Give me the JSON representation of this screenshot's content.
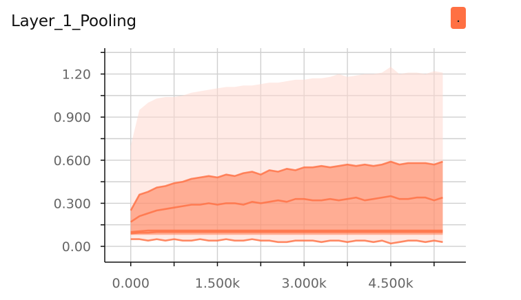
{
  "chart_data": {
    "type": "area",
    "title": "Layer_1_Pooling",
    "xlabel": "",
    "ylabel": "",
    "xlim": [
      -450,
      5800
    ],
    "ylim": [
      -0.11,
      1.38
    ],
    "x_ticks": [
      0,
      1500,
      3000,
      4500
    ],
    "x_tick_labels": [
      "0.000",
      "1.500k",
      "3.000k",
      "4.500k"
    ],
    "y_ticks": [
      0,
      0.3,
      0.6,
      0.9,
      1.2
    ],
    "y_tick_labels": [
      "0.00",
      "0.300",
      "0.600",
      "0.900",
      "1.20"
    ],
    "grid": true,
    "legend": "none",
    "color": "#ff7043",
    "x": [
      0,
      150,
      300,
      450,
      600,
      750,
      900,
      1050,
      1200,
      1350,
      1500,
      1650,
      1800,
      1950,
      2100,
      2250,
      2400,
      2550,
      2700,
      2850,
      3000,
      3150,
      3300,
      3450,
      3600,
      3750,
      3900,
      4050,
      4200,
      4350,
      4500,
      4650,
      4800,
      4950,
      5100,
      5250,
      5400
    ],
    "bands": [
      {
        "lower": [
          0.05,
          0.05,
          0.04,
          0.05,
          0.04,
          0.05,
          0.04,
          0.04,
          0.05,
          0.04,
          0.04,
          0.05,
          0.04,
          0.04,
          0.05,
          0.04,
          0.04,
          0.03,
          0.03,
          0.04,
          0.04,
          0.04,
          0.03,
          0.04,
          0.04,
          0.03,
          0.04,
          0.04,
          0.03,
          0.04,
          0.02,
          0.03,
          0.04,
          0.04,
          0.03,
          0.04,
          0.03
        ],
        "upper": [
          0.7,
          0.95,
          1.0,
          1.03,
          1.04,
          1.04,
          1.05,
          1.07,
          1.08,
          1.09,
          1.1,
          1.11,
          1.11,
          1.12,
          1.12,
          1.13,
          1.14,
          1.14,
          1.15,
          1.16,
          1.16,
          1.17,
          1.17,
          1.18,
          1.2,
          1.18,
          1.19,
          1.2,
          1.2,
          1.21,
          1.25,
          1.2,
          1.21,
          1.21,
          1.2,
          1.22,
          1.21
        ]
      },
      {
        "lower": [
          0.08,
          0.08,
          0.08,
          0.08,
          0.08,
          0.08,
          0.08,
          0.08,
          0.08,
          0.08,
          0.08,
          0.08,
          0.08,
          0.08,
          0.08,
          0.08,
          0.08,
          0.08,
          0.08,
          0.08,
          0.08,
          0.08,
          0.08,
          0.08,
          0.08,
          0.08,
          0.08,
          0.08,
          0.08,
          0.08,
          0.08,
          0.08,
          0.08,
          0.08,
          0.08,
          0.08,
          0.08
        ],
        "upper": [
          0.25,
          0.36,
          0.38,
          0.41,
          0.42,
          0.44,
          0.45,
          0.47,
          0.48,
          0.49,
          0.48,
          0.5,
          0.49,
          0.51,
          0.52,
          0.5,
          0.53,
          0.52,
          0.54,
          0.53,
          0.55,
          0.55,
          0.56,
          0.55,
          0.56,
          0.57,
          0.56,
          0.57,
          0.56,
          0.57,
          0.59,
          0.57,
          0.58,
          0.58,
          0.58,
          0.57,
          0.59
        ]
      }
    ],
    "series": [
      {
        "values": [
          0.25,
          0.36,
          0.38,
          0.41,
          0.42,
          0.44,
          0.45,
          0.47,
          0.48,
          0.49,
          0.48,
          0.5,
          0.49,
          0.51,
          0.52,
          0.5,
          0.53,
          0.52,
          0.54,
          0.53,
          0.55,
          0.55,
          0.56,
          0.55,
          0.56,
          0.57,
          0.56,
          0.57,
          0.56,
          0.57,
          0.59,
          0.57,
          0.58,
          0.58,
          0.58,
          0.57,
          0.59
        ]
      },
      {
        "values": [
          0.17,
          0.21,
          0.23,
          0.25,
          0.26,
          0.27,
          0.28,
          0.29,
          0.29,
          0.3,
          0.29,
          0.3,
          0.3,
          0.29,
          0.31,
          0.3,
          0.31,
          0.32,
          0.31,
          0.33,
          0.33,
          0.32,
          0.32,
          0.33,
          0.32,
          0.33,
          0.34,
          0.32,
          0.33,
          0.34,
          0.35,
          0.33,
          0.33,
          0.34,
          0.34,
          0.32,
          0.34
        ]
      },
      {
        "values": [
          0.1,
          0.105,
          0.11,
          0.11,
          0.11,
          0.11,
          0.11,
          0.11,
          0.11,
          0.11,
          0.11,
          0.11,
          0.11,
          0.11,
          0.11,
          0.11,
          0.11,
          0.11,
          0.11,
          0.11,
          0.11,
          0.11,
          0.11,
          0.11,
          0.11,
          0.11,
          0.11,
          0.11,
          0.11,
          0.11,
          0.11,
          0.11,
          0.11,
          0.11,
          0.11,
          0.11,
          0.11
        ]
      },
      {
        "values": [
          0.09,
          0.095,
          0.095,
          0.1,
          0.1,
          0.1,
          0.1,
          0.1,
          0.1,
          0.1,
          0.1,
          0.1,
          0.1,
          0.1,
          0.1,
          0.1,
          0.1,
          0.1,
          0.1,
          0.1,
          0.1,
          0.1,
          0.1,
          0.1,
          0.1,
          0.1,
          0.1,
          0.1,
          0.1,
          0.1,
          0.1,
          0.1,
          0.1,
          0.1,
          0.1,
          0.1,
          0.1
        ]
      },
      {
        "values": [
          0.05,
          0.05,
          0.04,
          0.05,
          0.04,
          0.05,
          0.04,
          0.04,
          0.05,
          0.04,
          0.04,
          0.05,
          0.04,
          0.04,
          0.05,
          0.04,
          0.04,
          0.03,
          0.03,
          0.04,
          0.04,
          0.04,
          0.03,
          0.04,
          0.04,
          0.03,
          0.04,
          0.04,
          0.03,
          0.04,
          0.02,
          0.03,
          0.04,
          0.04,
          0.03,
          0.04,
          0.03
        ]
      }
    ]
  },
  "badge": {
    "label": "."
  }
}
